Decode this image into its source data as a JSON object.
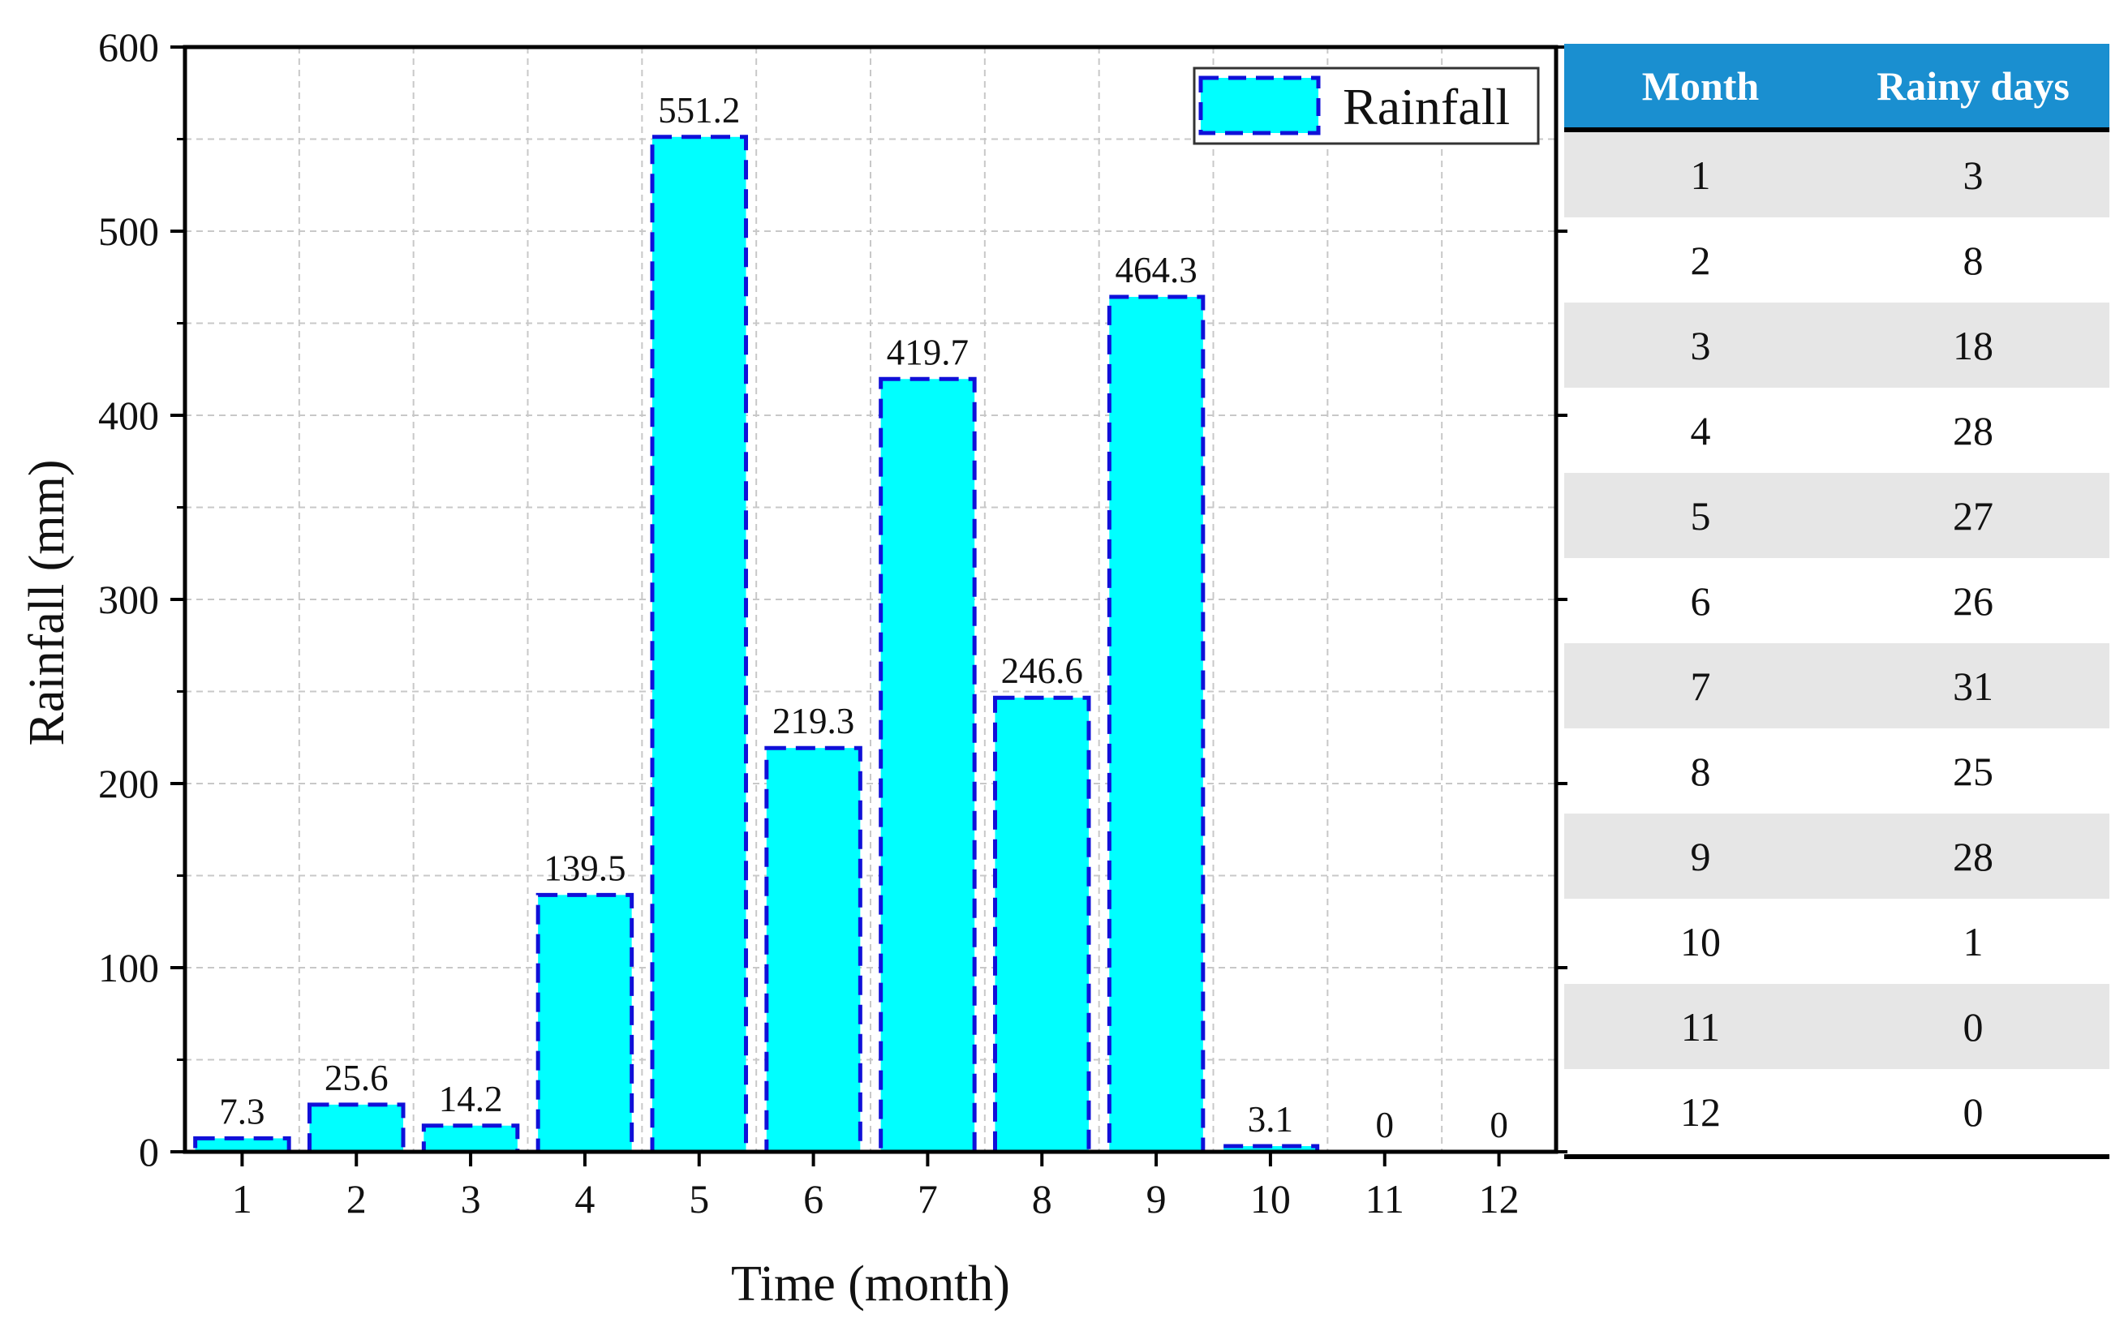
{
  "chart_data": {
    "type": "bar",
    "categories": [
      "1",
      "2",
      "3",
      "4",
      "5",
      "6",
      "7",
      "8",
      "9",
      "10",
      "11",
      "12"
    ],
    "series": [
      {
        "name": "Rainfall",
        "values": [
          7.3,
          25.6,
          14.2,
          139.5,
          551.2,
          219.3,
          419.7,
          246.6,
          464.3,
          3.1,
          0,
          0
        ]
      }
    ],
    "value_labels": [
      "7.3",
      "25.6",
      "14.2",
      "139.5",
      "551.2",
      "219.3",
      "419.7",
      "246.6",
      "464.3",
      "3.1",
      "0",
      "0"
    ],
    "title": "",
    "xlabel": "Time (month)",
    "ylabel": "Rainfall (mm)",
    "ylim": [
      0,
      600
    ],
    "yticks": [
      0,
      100,
      200,
      300,
      400,
      500,
      600
    ],
    "yticks_labels": [
      "0",
      "100",
      "200",
      "300",
      "400",
      "500",
      "600"
    ],
    "grid": true,
    "legend": {
      "placement": "top-right",
      "label": "Rainfall"
    },
    "colors": {
      "bar_fill": "#00ffff",
      "bar_edge": "#1010d8",
      "grid": "#c8c8c8"
    }
  },
  "table": {
    "headers": [
      "Month",
      "Rainy days"
    ],
    "rows": [
      [
        "1",
        "3"
      ],
      [
        "2",
        "8"
      ],
      [
        "3",
        "18"
      ],
      [
        "4",
        "28"
      ],
      [
        "5",
        "27"
      ],
      [
        "6",
        "26"
      ],
      [
        "7",
        "31"
      ],
      [
        "8",
        "25"
      ],
      [
        "9",
        "28"
      ],
      [
        "10",
        "1"
      ],
      [
        "11",
        "0"
      ],
      [
        "12",
        "0"
      ]
    ],
    "header_color": "#1a8fd0",
    "shade_color": "#e6e6e6"
  }
}
